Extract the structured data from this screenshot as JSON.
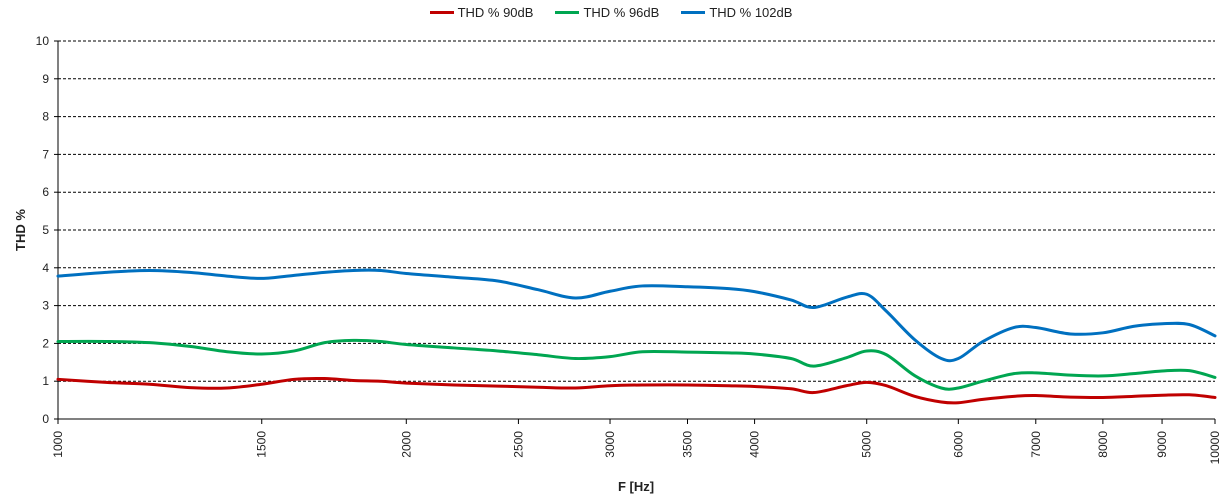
{
  "chart_data": {
    "type": "line",
    "xlabel": "F [Hz]",
    "ylabel": "THD %",
    "xscale": "log",
    "xlim": [
      1000,
      10000
    ],
    "ylim": [
      0,
      10
    ],
    "grid": "horizontal dashed",
    "legend_position": "top",
    "xticks": [
      "1000",
      "1500",
      "2000",
      "2500",
      "3000",
      "3500",
      "4000",
      "5000",
      "6000",
      "7000",
      "8000",
      "9000",
      "10000"
    ],
    "yticks": [
      "0",
      "1",
      "2",
      "3",
      "4",
      "5",
      "6",
      "7",
      "8",
      "9",
      "10"
    ],
    "x": [
      1000,
      1100,
      1200,
      1300,
      1400,
      1500,
      1600,
      1700,
      1800,
      1900,
      2000,
      2200,
      2400,
      2600,
      2800,
      3000,
      3200,
      3500,
      3800,
      4000,
      4300,
      4500,
      4800,
      5000,
      5200,
      5500,
      5800,
      6000,
      6300,
      6700,
      7000,
      7500,
      8000,
      8500,
      9000,
      9500,
      10000
    ],
    "series": [
      {
        "name": "THD % 90dB",
        "color": "#c00000",
        "values": [
          1.05,
          0.97,
          0.92,
          0.83,
          0.82,
          0.92,
          1.05,
          1.07,
          1.02,
          1.0,
          0.95,
          0.9,
          0.87,
          0.84,
          0.82,
          0.88,
          0.9,
          0.9,
          0.88,
          0.86,
          0.8,
          0.7,
          0.88,
          0.97,
          0.88,
          0.6,
          0.45,
          0.43,
          0.52,
          0.6,
          0.62,
          0.58,
          0.57,
          0.6,
          0.63,
          0.64,
          0.57
        ]
      },
      {
        "name": "THD % 96dB",
        "color": "#00a651",
        "values": [
          2.05,
          2.05,
          2.02,
          1.92,
          1.78,
          1.72,
          1.8,
          2.02,
          2.08,
          2.05,
          1.97,
          1.88,
          1.8,
          1.7,
          1.6,
          1.65,
          1.78,
          1.77,
          1.75,
          1.72,
          1.6,
          1.4,
          1.62,
          1.8,
          1.7,
          1.15,
          0.82,
          0.82,
          1.0,
          1.2,
          1.22,
          1.16,
          1.14,
          1.2,
          1.27,
          1.28,
          1.1
        ]
      },
      {
        "name": "THD % 102dB",
        "color": "#0070c0",
        "values": [
          3.78,
          3.88,
          3.93,
          3.88,
          3.78,
          3.72,
          3.8,
          3.88,
          3.93,
          3.93,
          3.85,
          3.75,
          3.65,
          3.42,
          3.2,
          3.38,
          3.52,
          3.5,
          3.45,
          3.37,
          3.15,
          2.95,
          3.22,
          3.3,
          2.85,
          2.1,
          1.6,
          1.6,
          2.05,
          2.42,
          2.42,
          2.25,
          2.28,
          2.45,
          2.52,
          2.5,
          2.2
        ]
      }
    ]
  }
}
